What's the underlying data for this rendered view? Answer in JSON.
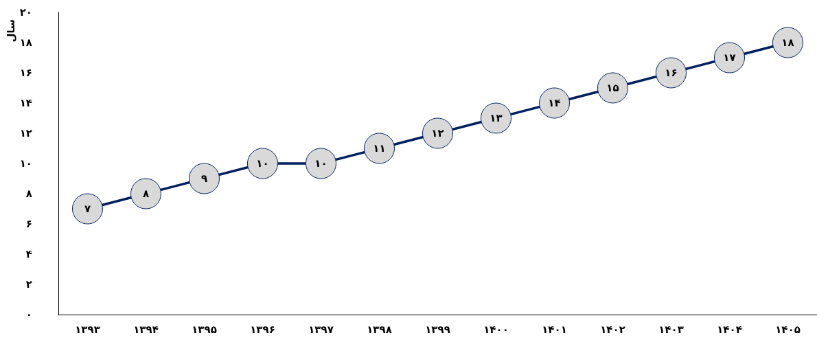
{
  "chart_data": {
    "type": "line",
    "ylabel": "سال",
    "categories": [
      "۱۳۹۳",
      "۱۳۹۴",
      "۱۳۹۵",
      "۱۳۹۶",
      "۱۳۹۷",
      "۱۳۹۸",
      "۱۳۹۹",
      "۱۴۰۰",
      "۱۴۰۱",
      "۱۴۰۲",
      "۱۴۰۳",
      "۱۴۰۴",
      "۱۴۰۵"
    ],
    "series": [
      {
        "color": "#002060",
        "values": [
          7,
          8,
          9,
          10,
          10,
          11,
          12,
          13,
          14,
          15,
          16,
          17,
          18
        ],
        "value_labels": [
          "۷",
          "۸",
          "۹",
          "۱۰",
          "۱۰",
          "۱۱",
          "۱۲",
          "۱۳",
          "۱۴",
          "۱۵",
          "۱۶",
          "۱۷",
          "۱۸"
        ]
      }
    ],
    "ylim": [
      0,
      20
    ],
    "yticks": [
      {
        "value": 0,
        "label": "۰"
      },
      {
        "value": 2,
        "label": "۲"
      },
      {
        "value": 4,
        "label": "۴"
      },
      {
        "value": 6,
        "label": "۶"
      },
      {
        "value": 8,
        "label": "۸"
      },
      {
        "value": 10,
        "label": "۱۰"
      },
      {
        "value": 12,
        "label": "۱۲"
      },
      {
        "value": 14,
        "label": "۱۴"
      },
      {
        "value": 16,
        "label": "۱۶"
      },
      {
        "value": 18,
        "label": "۱۸"
      },
      {
        "value": 20,
        "label": "۲۰"
      }
    ],
    "marker": "circle",
    "line_style": "solid",
    "grid": false
  }
}
